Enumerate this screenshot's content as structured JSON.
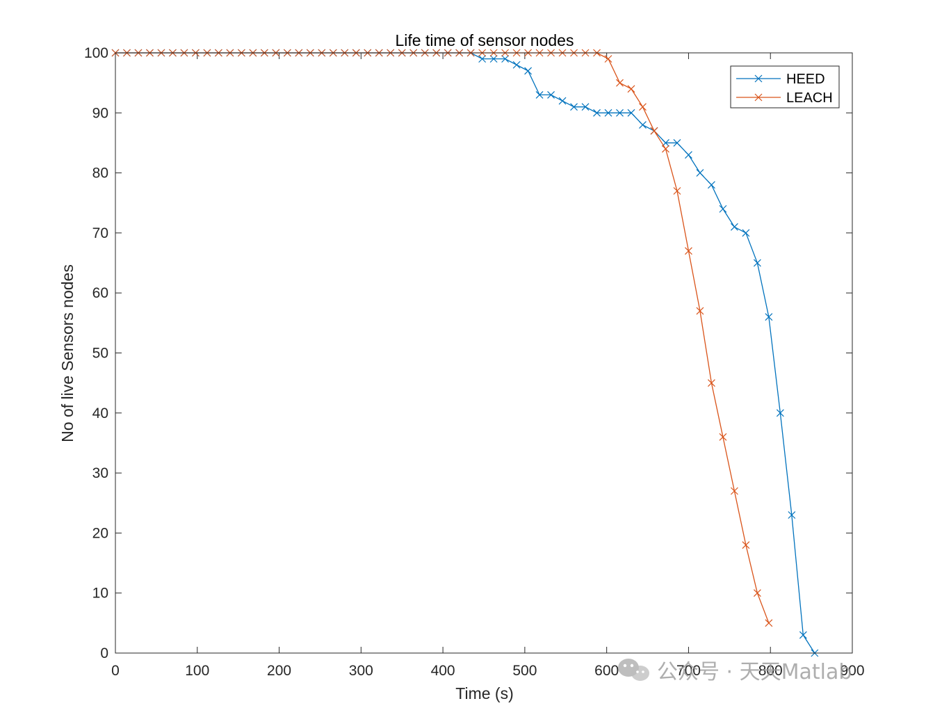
{
  "chart_data": {
    "type": "line",
    "title": "Life time of sensor nodes",
    "xlabel": "Time (s)",
    "ylabel": "No of live Sensors nodes",
    "xlim": [
      0,
      900
    ],
    "ylim": [
      0,
      100
    ],
    "xticks": [
      0,
      100,
      200,
      300,
      400,
      500,
      600,
      700,
      800,
      900
    ],
    "yticks": [
      0,
      10,
      20,
      30,
      40,
      50,
      60,
      70,
      80,
      90,
      100
    ],
    "grid": false,
    "legend_position": "top-right",
    "marker": "x",
    "series": [
      {
        "name": "HEED",
        "color": "#0072BD",
        "x": [
          0,
          14,
          28,
          42,
          56,
          70,
          84,
          98,
          112,
          126,
          140,
          154,
          168,
          182,
          196,
          210,
          224,
          238,
          252,
          266,
          280,
          294,
          308,
          322,
          336,
          350,
          364,
          378,
          392,
          406,
          420,
          434,
          448,
          462,
          476,
          490,
          504,
          518,
          532,
          546,
          560,
          574,
          588,
          602,
          616,
          630,
          644,
          658,
          672,
          686,
          700,
          714,
          728,
          742,
          756,
          770,
          784,
          798,
          812,
          826,
          840,
          854
        ],
        "y": [
          100,
          100,
          100,
          100,
          100,
          100,
          100,
          100,
          100,
          100,
          100,
          100,
          100,
          100,
          100,
          100,
          100,
          100,
          100,
          100,
          100,
          100,
          100,
          100,
          100,
          100,
          100,
          100,
          100,
          100,
          100,
          100,
          99,
          99,
          99,
          98,
          97,
          93,
          93,
          92,
          91,
          91,
          90,
          90,
          90,
          90,
          88,
          87,
          85,
          85,
          83,
          80,
          78,
          74,
          71,
          70,
          65,
          56,
          40,
          23,
          3,
          0
        ]
      },
      {
        "name": "LEACH",
        "color": "#D95319",
        "x": [
          0,
          14,
          28,
          42,
          56,
          70,
          84,
          98,
          112,
          126,
          140,
          154,
          168,
          182,
          196,
          210,
          224,
          238,
          252,
          266,
          280,
          294,
          308,
          322,
          336,
          350,
          364,
          378,
          392,
          406,
          420,
          434,
          448,
          462,
          476,
          490,
          504,
          518,
          532,
          546,
          560,
          574,
          588,
          602,
          616,
          630,
          644,
          658,
          672,
          686,
          700,
          714,
          728,
          742,
          756,
          770,
          784,
          798
        ],
        "y": [
          100,
          100,
          100,
          100,
          100,
          100,
          100,
          100,
          100,
          100,
          100,
          100,
          100,
          100,
          100,
          100,
          100,
          100,
          100,
          100,
          100,
          100,
          100,
          100,
          100,
          100,
          100,
          100,
          100,
          100,
          100,
          100,
          100,
          100,
          100,
          100,
          100,
          100,
          100,
          100,
          100,
          100,
          100,
          99,
          95,
          94,
          91,
          87,
          84,
          77,
          67,
          57,
          45,
          36,
          27,
          18,
          10,
          5
        ]
      }
    ]
  },
  "watermark": {
    "text": "公众号 · 天天Matlab",
    "icon": "wechat-icon"
  }
}
